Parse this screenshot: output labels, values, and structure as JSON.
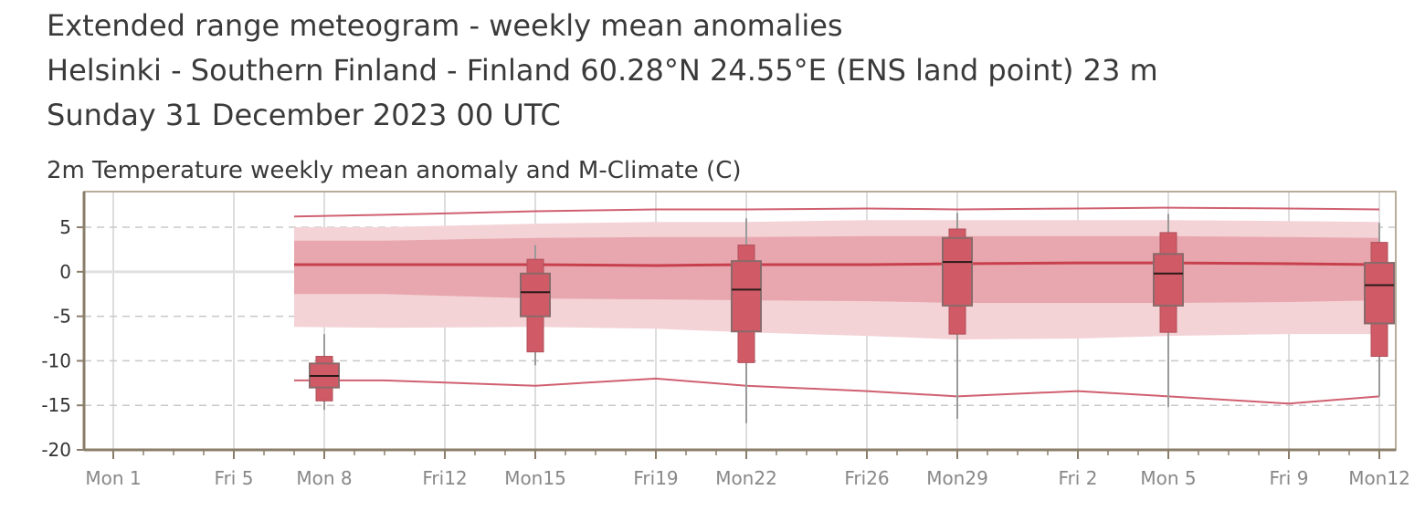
{
  "header": {
    "title": "Extended range meteogram - weekly mean anomalies",
    "location": "Helsinki - Southern Finland - Finland 60.28°N 24.55°E (ENS land point) 23 m",
    "date": "Sunday 31 December 2023 00 UTC"
  },
  "colors": {
    "accent": "#d05a66",
    "band_outer": "#f4d3d7",
    "band_inner": "#e8a7ae",
    "line": "#d06070",
    "grid": "#c8c8c8",
    "axis": "#8a7d6a"
  },
  "chart_data": {
    "type": "box",
    "title": "2m Temperature weekly mean anomaly and M-Climate (C)",
    "xlabel": "",
    "ylabel": "",
    "xlim": [
      "2024-01-01",
      "2024-02-12"
    ],
    "ylim": [
      -20,
      9
    ],
    "yticks": [
      5,
      0,
      -5,
      -10,
      -15,
      -20
    ],
    "xticks": [
      {
        "date": "2024-01-01",
        "label": "Mon 1"
      },
      {
        "date": "2024-01-05",
        "label": "Fri 5"
      },
      {
        "date": "2024-01-08",
        "label": "Mon 8"
      },
      {
        "date": "2024-01-12",
        "label": "Fri12"
      },
      {
        "date": "2024-01-15",
        "label": "Mon15"
      },
      {
        "date": "2024-01-19",
        "label": "Fri19"
      },
      {
        "date": "2024-01-22",
        "label": "Mon22"
      },
      {
        "date": "2024-01-26",
        "label": "Fri26"
      },
      {
        "date": "2024-01-29",
        "label": "Mon29"
      },
      {
        "date": "2024-02-02",
        "label": "Fri 2"
      },
      {
        "date": "2024-02-05",
        "label": "Mon 5"
      },
      {
        "date": "2024-02-09",
        "label": "Fri 9"
      },
      {
        "date": "2024-02-12",
        "label": "Mon12"
      }
    ],
    "grid": true,
    "climate": {
      "dates": [
        "2024-01-07",
        "2024-01-10",
        "2024-01-15",
        "2024-01-19",
        "2024-01-22",
        "2024-01-26",
        "2024-01-29",
        "2024-02-02",
        "2024-02-05",
        "2024-02-09",
        "2024-02-12"
      ],
      "max": [
        6.2,
        6.4,
        6.8,
        7.0,
        7.0,
        7.1,
        7.0,
        7.1,
        7.2,
        7.1,
        7.0
      ],
      "p90": [
        5.0,
        5.0,
        5.4,
        5.6,
        5.6,
        5.8,
        5.8,
        5.8,
        5.8,
        5.7,
        5.6
      ],
      "p75": [
        3.5,
        3.5,
        3.8,
        3.9,
        3.9,
        4.0,
        4.0,
        4.0,
        4.0,
        3.9,
        3.8
      ],
      "median": [
        0.8,
        0.8,
        0.8,
        0.7,
        0.8,
        0.8,
        0.9,
        1.0,
        1.0,
        0.9,
        0.8
      ],
      "p25": [
        -2.5,
        -2.5,
        -3.0,
        -3.1,
        -3.2,
        -3.3,
        -3.5,
        -3.5,
        -3.5,
        -3.4,
        -3.2
      ],
      "p10": [
        -6.2,
        -6.3,
        -6.2,
        -6.4,
        -6.8,
        -7.2,
        -7.6,
        -7.5,
        -7.2,
        -7.0,
        -7.0
      ],
      "min": [
        -12.2,
        -12.2,
        -12.8,
        -12.0,
        -12.8,
        -13.4,
        -14.0,
        -13.4,
        -14.0,
        -14.8,
        -14.0
      ]
    },
    "boxes": [
      {
        "date": "2024-01-08",
        "min": -15.5,
        "p10": -14.5,
        "p25": -13.0,
        "median": -11.7,
        "p75": -10.3,
        "p90": -9.5,
        "max": -7.0
      },
      {
        "date": "2024-01-15",
        "min": -10.5,
        "p10": -9.0,
        "p25": -5.0,
        "median": -2.3,
        "p75": -0.2,
        "p90": 1.4,
        "max": 3.0
      },
      {
        "date": "2024-01-22",
        "min": -17.0,
        "p10": -10.2,
        "p25": -6.7,
        "median": -2.0,
        "p75": 1.2,
        "p90": 3.0,
        "max": 6.0
      },
      {
        "date": "2024-01-29",
        "min": -16.5,
        "p10": -7.0,
        "p25": -3.8,
        "median": 1.1,
        "p75": 3.8,
        "p90": 4.8,
        "max": 6.6
      },
      {
        "date": "2024-02-05",
        "min": -15.2,
        "p10": -6.8,
        "p25": -3.8,
        "median": -0.2,
        "p75": 2.0,
        "p90": 4.4,
        "max": 6.5
      },
      {
        "date": "2024-02-12",
        "min": -14.0,
        "p10": -9.5,
        "p25": -5.8,
        "median": -1.5,
        "p75": 1.0,
        "p90": 3.3,
        "max": 5.5
      }
    ]
  }
}
